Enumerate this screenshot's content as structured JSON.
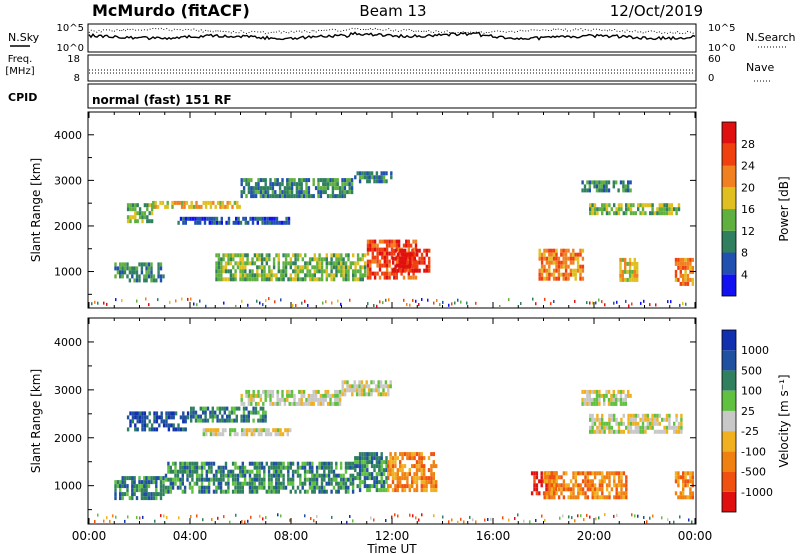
{
  "header": {
    "station": "McMurdo (fitACF)",
    "beam": "Beam 13",
    "date": "12/Oct/2019"
  },
  "status_panels": {
    "nsky": {
      "label": "N.Sky",
      "left_ticks": [
        "10^5",
        "10^0"
      ],
      "right_label": "N.Search",
      "right_ticks": [
        "10^5",
        "10^0"
      ]
    },
    "freq": {
      "label_line1": "Freq.",
      "label_line2": "[MHz]",
      "left_ticks": [
        "18",
        "8"
      ],
      "right_label": "Nave",
      "right_ticks": [
        "60",
        "0"
      ]
    },
    "cpid": {
      "label": "CPID",
      "text": "normal (fast) 151 RF"
    }
  },
  "colors": {
    "power_scale": [
      "#1010f0",
      "#2050b0",
      "#308060",
      "#60b040",
      "#e0c020",
      "#f08020",
      "#f04010",
      "#e01010"
    ],
    "velocity_scale": [
      "#e01010",
      "#f05010",
      "#f08010",
      "#f0b020",
      "#c8c8c8",
      "#60c040",
      "#308060",
      "#2050a0",
      "#1030b0"
    ]
  },
  "chart_data": [
    {
      "type": "heatmap",
      "name": "power",
      "ylabel": "Slant Range [km]",
      "yticks": [
        1000,
        2000,
        3000,
        4000
      ],
      "ylim": [
        200,
        4500
      ],
      "xlim": [
        0,
        24
      ],
      "colorbar": {
        "label": "Power [dB]",
        "ticks": [
          "4",
          "8",
          "12",
          "16",
          "20",
          "24",
          "28"
        ]
      },
      "features": [
        {
          "t_start": 1.5,
          "t_end": 2.5,
          "r_start": 2100,
          "r_end": 2500,
          "level": 3
        },
        {
          "t_start": 2.5,
          "t_end": 6.0,
          "r_start": 2350,
          "r_end": 2550,
          "level": 4
        },
        {
          "t_start": 6.0,
          "t_end": 10.5,
          "r_start": 2650,
          "r_end": 3050,
          "level": 2
        },
        {
          "t_start": 10.5,
          "t_end": 12.0,
          "r_start": 2900,
          "r_end": 3200,
          "level": 2
        },
        {
          "t_start": 3.5,
          "t_end": 8.0,
          "r_start": 2000,
          "r_end": 2200,
          "level": 1
        },
        {
          "t_start": 1.0,
          "t_end": 3.0,
          "r_start": 750,
          "r_end": 1200,
          "level": 2
        },
        {
          "t_start": 5.0,
          "t_end": 11.0,
          "r_start": 800,
          "r_end": 1400,
          "level": 3
        },
        {
          "t_start": 11.0,
          "t_end": 13.0,
          "r_start": 800,
          "r_end": 1700,
          "level": 6
        },
        {
          "t_start": 12.0,
          "t_end": 13.5,
          "r_start": 1000,
          "r_end": 1500,
          "level": 7
        },
        {
          "t_start": 17.8,
          "t_end": 19.6,
          "r_start": 800,
          "r_end": 1500,
          "level": 5
        },
        {
          "t_start": 19.5,
          "t_end": 21.5,
          "r_start": 2700,
          "r_end": 3000,
          "level": 2
        },
        {
          "t_start": 19.8,
          "t_end": 23.5,
          "r_start": 2200,
          "r_end": 2500,
          "level": 3
        },
        {
          "t_start": 21.0,
          "t_end": 21.8,
          "r_start": 800,
          "r_end": 1300,
          "level": 4
        },
        {
          "t_start": 23.2,
          "t_end": 24.0,
          "r_start": 700,
          "r_end": 1300,
          "level": 5
        }
      ]
    },
    {
      "type": "heatmap",
      "name": "velocity",
      "ylabel": "Slant Range [km]",
      "yticks": [
        1000,
        2000,
        3000,
        4000
      ],
      "ylim": [
        200,
        4500
      ],
      "xlim": [
        0,
        24
      ],
      "xticks": [
        "00:00",
        "04:00",
        "08:00",
        "12:00",
        "16:00",
        "20:00",
        "00:00"
      ],
      "xlabel": "Time UT",
      "colorbar": {
        "label": "Velocity [m s⁻¹]",
        "ticks": [
          "-1000",
          "-500",
          "-100",
          "-25",
          "25",
          "100",
          "500",
          "1000"
        ]
      },
      "features": [
        {
          "t_start": 1.5,
          "t_end": 4.0,
          "r_start": 2150,
          "r_end": 2550,
          "level": 7
        },
        {
          "t_start": 4.0,
          "t_end": 7.0,
          "r_start": 2350,
          "r_end": 2650,
          "level": 6
        },
        {
          "t_start": 6.0,
          "t_end": 10.0,
          "r_start": 2650,
          "r_end": 3000,
          "level": 4
        },
        {
          "t_start": 10.0,
          "t_end": 12.0,
          "r_start": 2900,
          "r_end": 3200,
          "level": 4
        },
        {
          "t_start": 4.5,
          "t_end": 8.0,
          "r_start": 2000,
          "r_end": 2200,
          "level": 4
        },
        {
          "t_start": 1.0,
          "t_end": 3.0,
          "r_start": 700,
          "r_end": 1200,
          "level": 6
        },
        {
          "t_start": 3.0,
          "t_end": 10.5,
          "r_start": 800,
          "r_end": 1500,
          "level": 6
        },
        {
          "t_start": 10.5,
          "t_end": 11.8,
          "r_start": 900,
          "r_end": 1700,
          "level": 6
        },
        {
          "t_start": 11.8,
          "t_end": 13.8,
          "r_start": 900,
          "r_end": 1700,
          "level": 2
        },
        {
          "t_start": 17.5,
          "t_end": 18.5,
          "r_start": 800,
          "r_end": 1300,
          "level": 0
        },
        {
          "t_start": 18.0,
          "t_end": 21.3,
          "r_start": 700,
          "r_end": 1300,
          "level": 2
        },
        {
          "t_start": 19.5,
          "t_end": 21.5,
          "r_start": 2700,
          "r_end": 3000,
          "level": 4
        },
        {
          "t_start": 19.8,
          "t_end": 23.5,
          "r_start": 2100,
          "r_end": 2500,
          "level": 4
        },
        {
          "t_start": 23.2,
          "t_end": 24.0,
          "r_start": 700,
          "r_end": 1300,
          "level": 2
        }
      ]
    }
  ]
}
